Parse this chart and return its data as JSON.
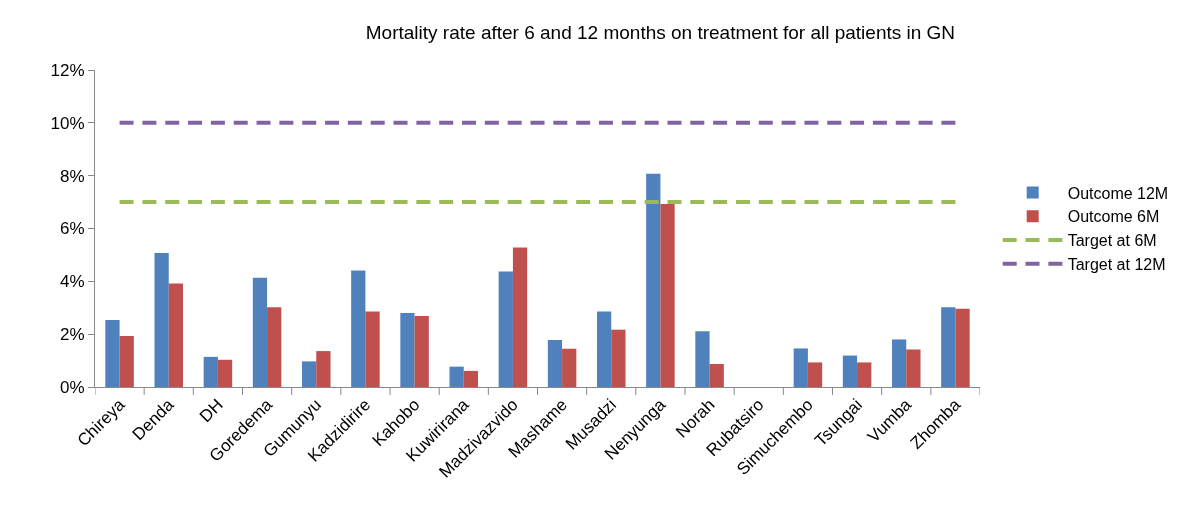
{
  "chart_data": {
    "type": "bar",
    "title": "Mortality rate after 6 and 12 months on treatment for all patients in GN",
    "categories": [
      "Chireya",
      "Denda",
      "DH",
      "Goredema",
      "Gumunyu",
      "Kadzidirire",
      "Kahobo",
      "Kuwirirana",
      "Madzivazvido",
      "Mashame",
      "Musadzi",
      "Nenyunga",
      "Norah",
      "Rubatsiro",
      "Simuchembo",
      "Tsungai",
      "Vumba",
      "Zhomba"
    ],
    "series": [
      {
        "name": "Outcome 12M",
        "color": "#4f81bd",
        "values": [
          2.54,
          5.07,
          1.14,
          4.14,
          0.97,
          4.41,
          2.8,
          0.77,
          4.37,
          1.78,
          2.86,
          8.07,
          2.11,
          0,
          1.46,
          1.19,
          1.8,
          3.02
        ]
      },
      {
        "name": "Outcome 6M",
        "color": "#c0504d",
        "values": [
          1.93,
          3.92,
          1.03,
          3.02,
          1.36,
          2.86,
          2.69,
          0.61,
          5.28,
          1.45,
          2.17,
          6.93,
          0.87,
          0,
          0.93,
          0.93,
          1.42,
          2.96
        ]
      },
      {
        "name": "Target at 6M",
        "color": "#9bbb59",
        "type": "line",
        "line_style": "dashed",
        "values": [
          7,
          7,
          7,
          7,
          7,
          7,
          7,
          7,
          7,
          7,
          7,
          7,
          7,
          7,
          7,
          7,
          7,
          7
        ]
      },
      {
        "name": "Target at 12M",
        "color": "#8064a2",
        "type": "line",
        "line_style": "dashed",
        "values": [
          10,
          10,
          10,
          10,
          10,
          10,
          10,
          10,
          10,
          10,
          10,
          10,
          10,
          10,
          10,
          10,
          10,
          10
        ]
      }
    ],
    "ylim": [
      0,
      12
    ],
    "yticks": [
      {
        "value": 0,
        "label": "0%"
      },
      {
        "value": 2,
        "label": "2%"
      },
      {
        "value": 4,
        "label": "4%"
      },
      {
        "value": 6,
        "label": "6%"
      },
      {
        "value": 8,
        "label": "8%"
      },
      {
        "value": 10,
        "label": "10%"
      },
      {
        "value": 12,
        "label": "12%"
      }
    ],
    "grid": false,
    "legend": "right"
  }
}
